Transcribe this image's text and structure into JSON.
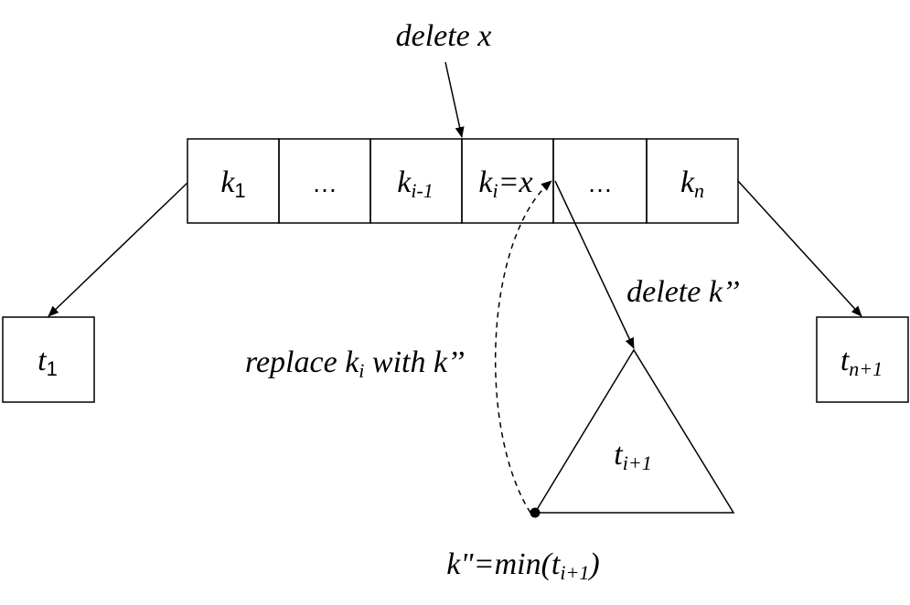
{
  "node": {
    "keys": [
      {
        "main": "k",
        "sub": "1",
        "sub_upright": true
      },
      {
        "main": "…",
        "sub": ""
      },
      {
        "main": "k",
        "sub": "i-1",
        "sub_upright": false
      },
      {
        "main": "k",
        "sub": "i",
        "suffix": "=x",
        "sub_upright": false
      },
      {
        "main": "…",
        "sub": ""
      },
      {
        "main": "k",
        "sub": "n",
        "sub_upright": false
      }
    ]
  },
  "labels": {
    "delete_x": "delete x",
    "delete_k2": "delete k’’",
    "replace": {
      "prefix": "replace k",
      "sub": "i",
      "suffix": " with k’’"
    },
    "min_label": {
      "prefix": "k\"=min(t",
      "sub": "i+1",
      "suffix": ")"
    }
  },
  "subtrees": {
    "t1": {
      "main": "t",
      "sub": "1"
    },
    "tn1": {
      "main": "t",
      "sub": "n+1"
    },
    "ti1": {
      "main": "t",
      "sub": "i+1"
    }
  },
  "colors": {
    "stroke": "#000000",
    "background": "#ffffff"
  }
}
